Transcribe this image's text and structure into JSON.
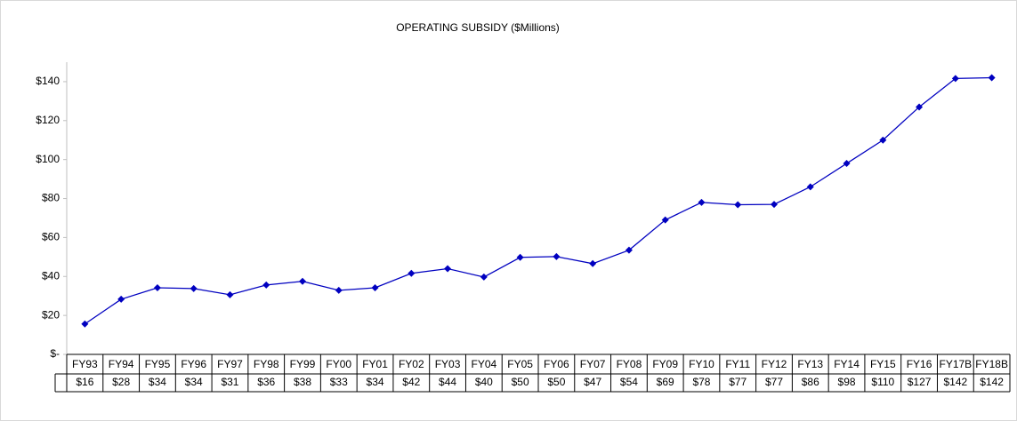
{
  "chart_data": {
    "type": "line",
    "title": "OPERATING SUBSIDY ($Millions)",
    "categories": [
      "FY93",
      "FY94",
      "FY95",
      "FY96",
      "FY97",
      "FY98",
      "FY99",
      "FY00",
      "FY01",
      "FY02",
      "FY03",
      "FY04",
      "FY05",
      "FY06",
      "FY07",
      "FY08",
      "FY09",
      "FY10",
      "FY11",
      "FY12",
      "FY13",
      "FY14",
      "FY15",
      "FY16",
      "FY17B",
      "FY18B"
    ],
    "series": [
      {
        "name": "Operating Subsidy",
        "color": "#0000c0",
        "values": [
          15.6,
          28.3,
          34.2,
          33.8,
          30.6,
          35.6,
          37.5,
          32.9,
          34.2,
          41.6,
          44,
          39.7,
          49.8,
          50.2,
          46.6,
          53.5,
          69,
          78,
          76.8,
          77,
          86,
          98,
          110,
          127,
          141.6,
          142
        ],
        "value_labels": [
          "$16",
          "$28",
          "$34",
          "$34",
          "$31",
          "$36",
          "$38",
          "$33",
          "$34",
          "$42",
          "$44",
          "$40",
          "$50",
          "$50",
          "$47",
          "$54",
          "$69",
          "$78",
          "$77",
          "$77",
          "$86",
          "$98",
          "$110",
          "$127",
          "$142",
          "$142"
        ]
      }
    ],
    "ylim": [
      0,
      150
    ],
    "yticks": [
      {
        "value": 0,
        "label": "$-"
      },
      {
        "value": 20,
        "label": "$20"
      },
      {
        "value": 40,
        "label": "$40"
      },
      {
        "value": 60,
        "label": "$60"
      },
      {
        "value": 80,
        "label": "$80"
      },
      {
        "value": 100,
        "label": "$100"
      },
      {
        "value": 120,
        "label": "$120"
      },
      {
        "value": 140,
        "label": "$140"
      }
    ],
    "grid": false
  }
}
